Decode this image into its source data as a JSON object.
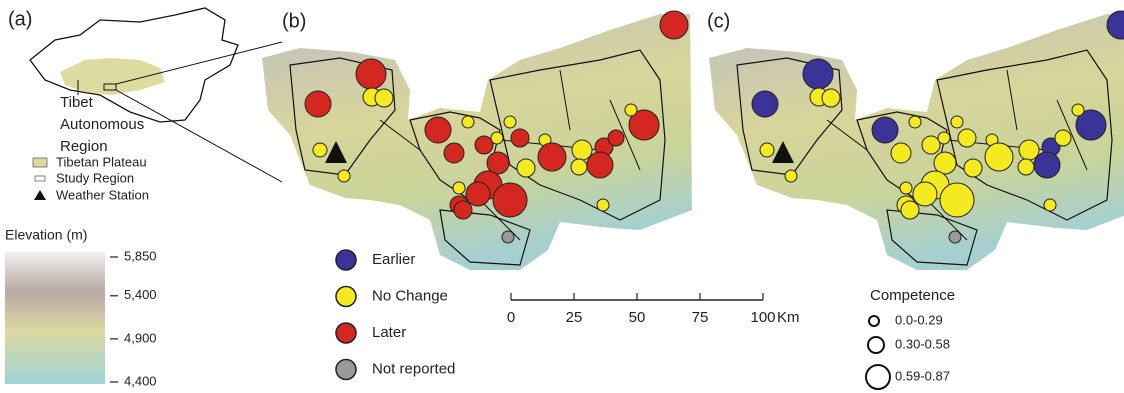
{
  "panels": [
    "(a)",
    "(b)",
    "(c)"
  ],
  "inset": {
    "annotation": [
      "Tibet",
      "Autonomous",
      "Region"
    ],
    "legend": [
      "Tibetan Plateau",
      "Study Region",
      "Weather Station"
    ]
  },
  "elevation": {
    "title": "Elevation (m)",
    "ticks": [
      {
        "value": 5850,
        "label": "5,850"
      },
      {
        "value": 5400,
        "label": "5,400"
      },
      {
        "value": 4900,
        "label": "4,900"
      },
      {
        "value": 4400,
        "label": "4,400"
      }
    ]
  },
  "change_legend": [
    "Earlier",
    "No Change",
    "Later",
    "Not reported"
  ],
  "scale_bar": {
    "ticks": [
      0,
      25,
      50,
      75,
      100
    ],
    "unit": "Km"
  },
  "competence": {
    "title": "Competence",
    "ranges": [
      "0.0-0.29",
      "0.30-0.58",
      "0.59-0.87"
    ]
  }
}
